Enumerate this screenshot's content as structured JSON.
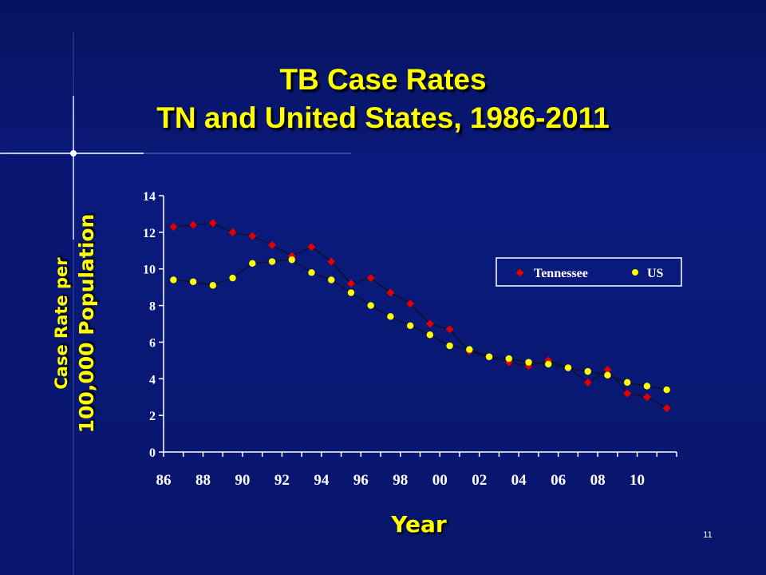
{
  "slide": {
    "title_line1": "TB Case Rates",
    "title_line2": "TN and United States, 1986-2011",
    "ylabel_line1": "Case Rate per",
    "ylabel_line2": "100,000 Population",
    "xlabel": "Year",
    "slide_number": "11"
  },
  "colors": {
    "background": "#0a1a7c",
    "title": "#ffff00",
    "tennessee": "#e00000",
    "us": "#ffff00",
    "axis": "#ffffff"
  },
  "chart_data": {
    "type": "line",
    "title": "",
    "xlabel": "Year",
    "ylabel": "Case Rate per 100,000 Population",
    "x": [
      1986,
      1987,
      1988,
      1989,
      1990,
      1991,
      1992,
      1993,
      1994,
      1995,
      1996,
      1997,
      1998,
      1999,
      2000,
      2001,
      2002,
      2003,
      2004,
      2005,
      2006,
      2007,
      2008,
      2009,
      2010,
      2011
    ],
    "x_tick_labels": [
      "86",
      "88",
      "90",
      "92",
      "94",
      "96",
      "98",
      "00",
      "02",
      "04",
      "06",
      "08",
      "10"
    ],
    "y_ticks": [
      0,
      2,
      4,
      6,
      8,
      10,
      12,
      14
    ],
    "ylim": [
      0,
      14
    ],
    "grid": false,
    "legend": "upper-right",
    "series": [
      {
        "name": "Tennessee",
        "marker": "diamond",
        "color": "#e00000",
        "values": [
          12.3,
          12.4,
          12.5,
          12.0,
          11.8,
          11.3,
          10.7,
          11.2,
          10.4,
          9.2,
          9.5,
          8.7,
          8.1,
          7.0,
          6.7,
          5.5,
          5.2,
          4.9,
          4.7,
          5.0,
          4.6,
          3.8,
          4.5,
          3.2,
          3.0,
          2.4
        ]
      },
      {
        "name": "US",
        "marker": "circle",
        "color": "#ffff00",
        "values": [
          9.4,
          9.3,
          9.1,
          9.5,
          10.3,
          10.4,
          10.5,
          9.8,
          9.4,
          8.7,
          8.0,
          7.4,
          6.9,
          6.4,
          5.8,
          5.6,
          5.2,
          5.1,
          4.9,
          4.8,
          4.6,
          4.4,
          4.2,
          3.8,
          3.6,
          3.4
        ]
      }
    ]
  }
}
